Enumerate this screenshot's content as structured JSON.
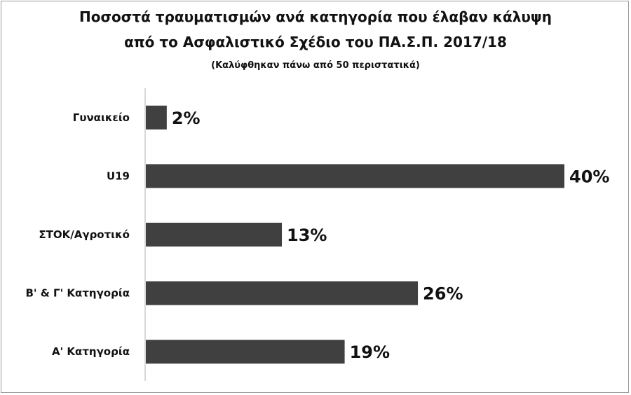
{
  "chart_data": {
    "type": "bar",
    "orientation": "horizontal",
    "title": "Ποσοστά τραυματισμών ανά κατηγορία που έλαβαν κάλυψη",
    "title_line2": "από το Ασφαλιστικό  Σχέδιο του ΠΑ.Σ.Π. 2017/18",
    "subtitle": "(Καλύφθηκαν πάνω από 50 περιστατικά)",
    "categories": [
      "Γυναικείο",
      "U19",
      "ΣΤΟΚ/Αγροτικό",
      "Β' & Γ' Κατηγορία",
      "Α' Κατηγορία"
    ],
    "values": [
      2,
      40,
      13,
      26,
      19
    ],
    "value_labels": [
      "2%",
      "40%",
      "13%",
      "26%",
      "19%"
    ],
    "xlim": [
      0,
      40
    ],
    "grid": false,
    "bar_color": "#404040"
  }
}
